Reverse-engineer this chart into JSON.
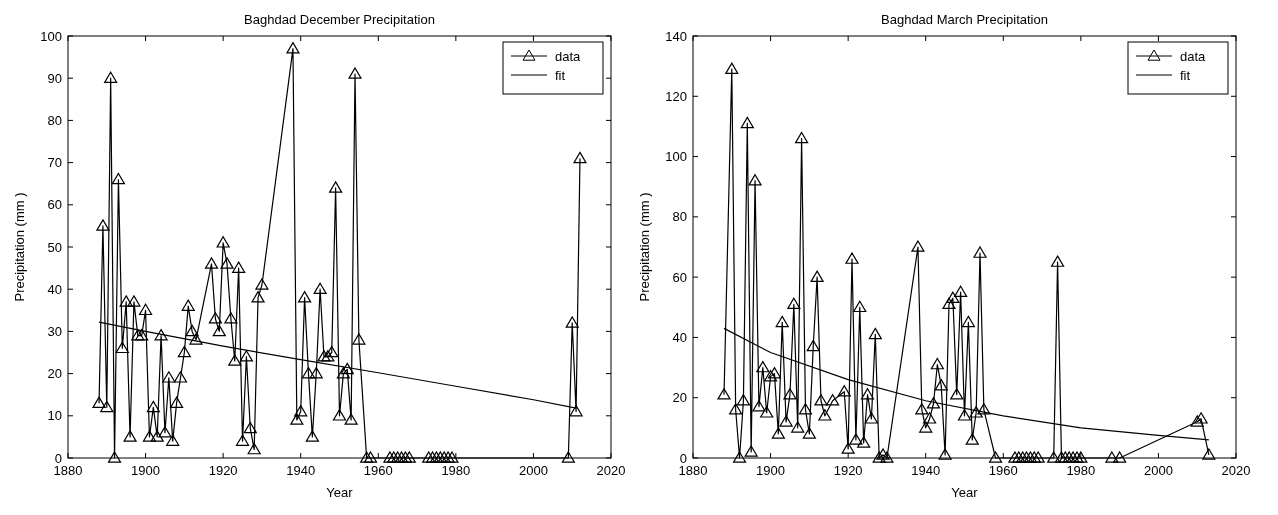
{
  "chart_data": [
    {
      "type": "line",
      "title": "Baghdad December Precipitation",
      "xlabel": "Year",
      "ylabel": "Precipitation  (mm )",
      "xlim": [
        1880,
        2020
      ],
      "xticks": [
        1880,
        1900,
        1920,
        1940,
        1960,
        1980,
        2000,
        2020
      ],
      "ylim": [
        0,
        100
      ],
      "yticks": [
        0,
        10,
        20,
        30,
        40,
        50,
        60,
        70,
        80,
        90,
        100
      ],
      "legend": "top right",
      "grid": false,
      "series": [
        {
          "name": "data",
          "color": "#000000",
          "marker": "triangle",
          "x": [
            1888,
            1889,
            1890,
            1891,
            1892,
            1893,
            1894,
            1895,
            1896,
            1897,
            1898,
            1899,
            1900,
            1901,
            1902,
            1903,
            1904,
            1905,
            1906,
            1907,
            1908,
            1909,
            1910,
            1911,
            1912,
            1913,
            1917,
            1918,
            1919,
            1920,
            1921,
            1922,
            1923,
            1924,
            1925,
            1926,
            1927,
            1928,
            1929,
            1930,
            1938,
            1939,
            1940,
            1941,
            1942,
            1943,
            1944,
            1945,
            1946,
            1947,
            1948,
            1949,
            1950,
            1951,
            1952,
            1953,
            1954,
            1955,
            1957,
            1958,
            1963,
            1964,
            1965,
            1966,
            1967,
            1968,
            1973,
            1974,
            1975,
            1976,
            1977,
            1978,
            1979,
            2009,
            2010,
            2011,
            2012
          ],
          "values": [
            13,
            55,
            12,
            90,
            0,
            66,
            26,
            37,
            5,
            37,
            29,
            29,
            35,
            5,
            12,
            5,
            29,
            6,
            19,
            4,
            13,
            19,
            25,
            36,
            30,
            28,
            46,
            33,
            30,
            51,
            46,
            33,
            23,
            45,
            4,
            24,
            7,
            2,
            38,
            41,
            97,
            9,
            11,
            38,
            20,
            5,
            20,
            40,
            24,
            24,
            25,
            64,
            10,
            20,
            21,
            9,
            91,
            28,
            0,
            0,
            0,
            0,
            0,
            0,
            0,
            0,
            0,
            0,
            0,
            0,
            0,
            0,
            0,
            0,
            32,
            11,
            71
          ]
        },
        {
          "name": "fit",
          "color": "#000000",
          "marker": "none",
          "x": [
            1888,
            1900,
            1920,
            1940,
            1960,
            1980,
            2000,
            2011
          ],
          "values": [
            32.2,
            30,
            26.5,
            23.3,
            20.2,
            17,
            13.8,
            11.8
          ]
        }
      ]
    },
    {
      "type": "line",
      "title": "Baghdad March Precipitation",
      "xlabel": "Year",
      "ylabel": "Precipitation  (mm )",
      "xlim": [
        1880,
        2020
      ],
      "xticks": [
        1880,
        1900,
        1920,
        1940,
        1960,
        1980,
        2000,
        2020
      ],
      "ylim": [
        0,
        140
      ],
      "yticks": [
        0,
        20,
        40,
        60,
        80,
        100,
        120,
        140
      ],
      "legend": "top right",
      "grid": false,
      "series": [
        {
          "name": "data",
          "color": "#000000",
          "marker": "triangle",
          "x": [
            1888,
            1890,
            1891,
            1892,
            1893,
            1894,
            1895,
            1896,
            1897,
            1898,
            1899,
            1900,
            1901,
            1902,
            1903,
            1904,
            1905,
            1906,
            1907,
            1908,
            1909,
            1910,
            1911,
            1912,
            1913,
            1914,
            1916,
            1919,
            1920,
            1921,
            1922,
            1923,
            1924,
            1925,
            1926,
            1927,
            1928,
            1929,
            1930,
            1938,
            1939,
            1940,
            1941,
            1942,
            1943,
            1944,
            1945,
            1946,
            1947,
            1948,
            1949,
            1950,
            1951,
            1952,
            1953,
            1954,
            1955,
            1958,
            1963,
            1964,
            1965,
            1966,
            1967,
            1968,
            1969,
            1973,
            1974,
            1975,
            1976,
            1977,
            1978,
            1979,
            1980,
            1988,
            1990,
            2010,
            2011,
            2013
          ],
          "values": [
            21,
            129,
            16,
            0,
            19,
            111,
            2,
            92,
            17,
            30,
            15,
            27,
            28,
            8,
            45,
            12,
            21,
            51,
            10,
            106,
            16,
            8,
            37,
            60,
            19,
            14,
            19,
            22,
            3,
            66,
            6,
            50,
            5,
            21,
            13,
            41,
            0,
            1,
            0,
            70,
            16,
            10,
            13,
            18,
            31,
            24,
            1,
            51,
            53,
            21,
            55,
            14,
            45,
            6,
            15,
            68,
            16,
            0,
            0,
            0,
            0,
            0,
            0,
            0,
            0,
            0,
            65,
            0,
            0,
            0,
            0,
            0,
            0,
            0,
            0,
            12,
            13,
            1
          ]
        },
        {
          "name": "fit",
          "color": "#000000",
          "marker": "none",
          "x": [
            1888,
            1900,
            1920,
            1940,
            1960,
            1980,
            2000,
            2013
          ],
          "values": [
            43,
            35,
            26,
            19,
            14,
            10,
            7.5,
            6
          ]
        }
      ]
    }
  ]
}
